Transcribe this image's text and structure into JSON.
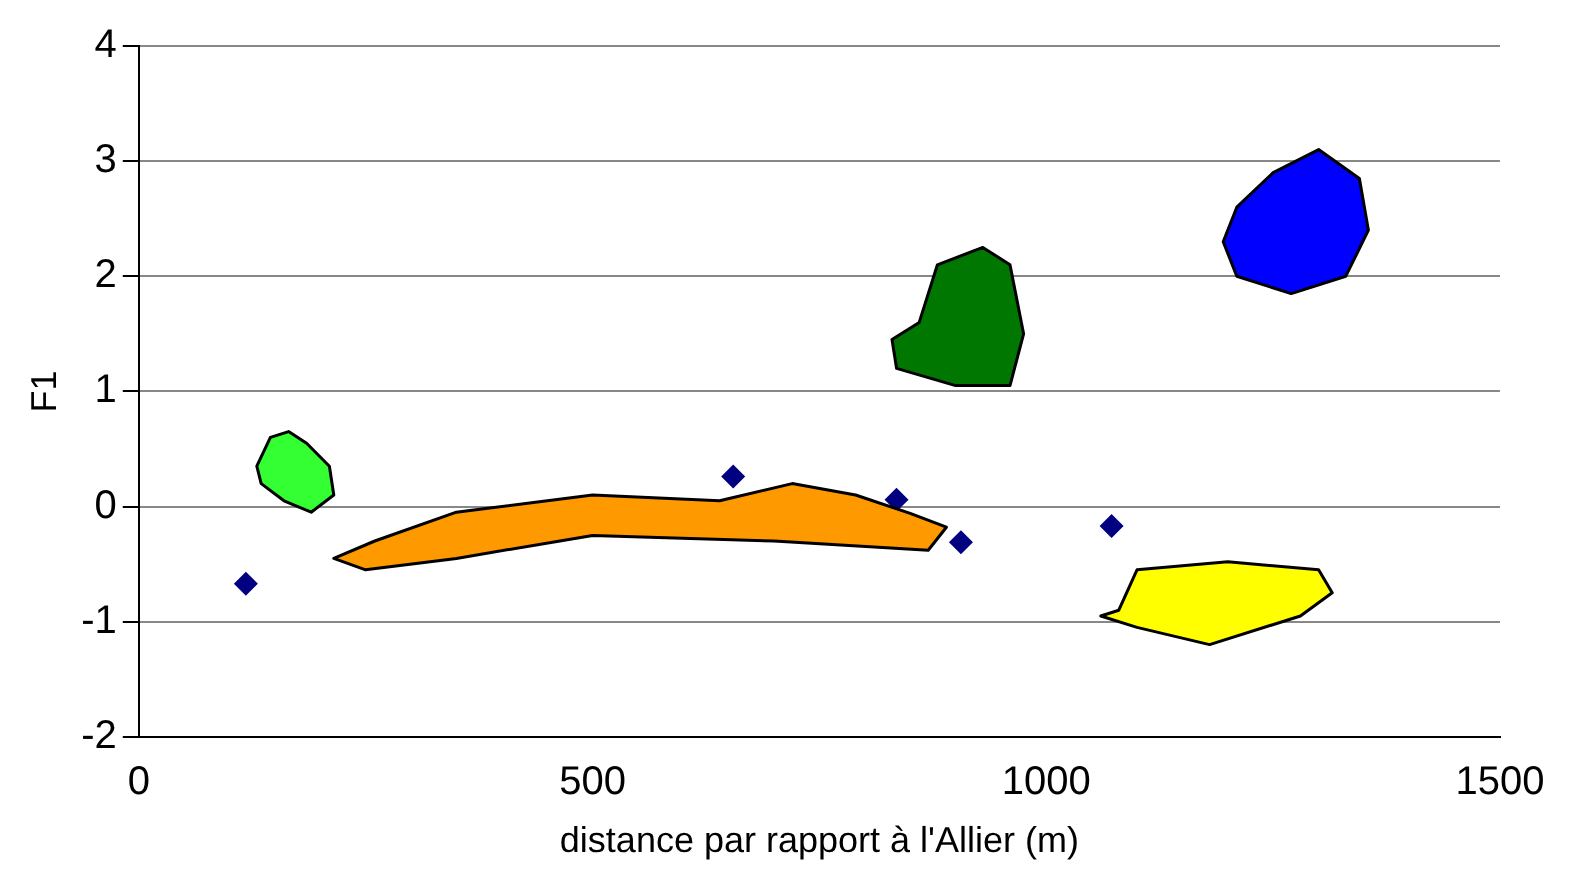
{
  "chart_data": {
    "type": "scatter",
    "xlabel": "distance par rapport à l'Allier (m)",
    "ylabel": "F1",
    "x": [
      118,
      655,
      835,
      906,
      1072
    ],
    "series": [
      {
        "color": "#000080",
        "values": [
          -0.67,
          0.26,
          0.06,
          -0.31,
          -0.17
        ]
      }
    ],
    "xlim": [
      0,
      1500
    ],
    "xticks": [
      0,
      500,
      1000,
      1500
    ],
    "ylim": [
      -2,
      4
    ],
    "yticks": [
      -2,
      -1,
      0,
      1,
      2,
      3,
      4
    ],
    "grid": "y",
    "legend": false,
    "marker": "diamond"
  }
}
